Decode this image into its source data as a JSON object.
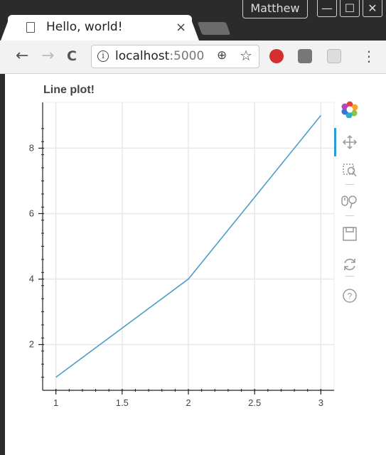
{
  "window": {
    "user_label": "Matthew",
    "controls": [
      "—",
      "☐",
      "✕"
    ]
  },
  "tab": {
    "title": "Hello, world!",
    "close": "×"
  },
  "toolbar": {
    "back": "←",
    "forward": "→",
    "reload": "C",
    "info": "i",
    "url_host": "localhost",
    "url_port": ":5000",
    "zoom": "⊕",
    "star": "☆",
    "menu": "⋮"
  },
  "colors": {
    "line": "#4d9dc7",
    "grid": "#e8e8e8",
    "active_tool": "#2a9fd6"
  },
  "tools": [
    "bokeh-logo-icon",
    "pan-icon",
    "box-zoom-icon",
    "wheel-zoom-icon",
    "save-icon",
    "reset-icon",
    "help-icon"
  ],
  "chart_data": {
    "type": "line",
    "title": "Line plot!",
    "x": [
      1,
      2,
      3
    ],
    "y": [
      1,
      4,
      9
    ],
    "xlim": [
      0.9,
      3.1
    ],
    "ylim": [
      0.6,
      9.4
    ],
    "xticks": [
      "1",
      "1.5",
      "2",
      "2.5",
      "3"
    ],
    "yticks": [
      "2",
      "4",
      "6",
      "8"
    ],
    "xtick_values": [
      1,
      1.5,
      2,
      2.5,
      3
    ],
    "ytick_values": [
      2,
      4,
      6,
      8
    ],
    "grid": true
  }
}
